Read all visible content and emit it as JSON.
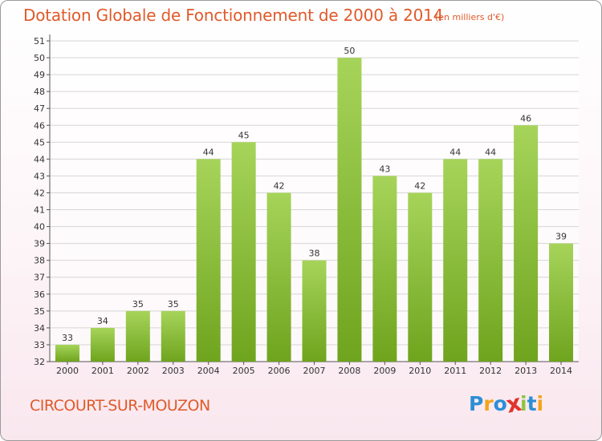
{
  "chart_data": {
    "type": "bar",
    "title": "Dotation Globale de Fonctionnement de 2000 à 2014",
    "subtitle": "(en milliers d'€)",
    "categories": [
      "2000",
      "2001",
      "2002",
      "2003",
      "2004",
      "2005",
      "2006",
      "2007",
      "2008",
      "2009",
      "2010",
      "2011",
      "2012",
      "2013",
      "2014"
    ],
    "values": [
      33,
      34,
      35,
      35,
      44,
      45,
      42,
      38,
      50,
      43,
      42,
      44,
      44,
      46,
      39
    ],
    "ylim": [
      32,
      51
    ],
    "yticks": [
      32,
      33,
      34,
      35,
      36,
      37,
      38,
      39,
      40,
      41,
      42,
      43,
      44,
      45,
      46,
      47,
      48,
      49,
      50,
      51
    ],
    "grid": true,
    "xlabel": "",
    "ylabel": "",
    "bar_color_light": "#a6d45a",
    "bar_color_dark": "#6fa41e"
  },
  "footer": {
    "commune": "CIRCOURT-SUR-MOUZON",
    "logo_letters": [
      "P",
      "r",
      "o",
      "x",
      "i",
      "t",
      "i"
    ],
    "logo_colors": [
      "#2d8ed6",
      "#f5a31a",
      "#2d8ed6",
      "#e0342c",
      "#8dc63f",
      "#2d8ed6",
      "#f5a31a"
    ]
  },
  "colors": {
    "accent": "#e05a2a"
  }
}
